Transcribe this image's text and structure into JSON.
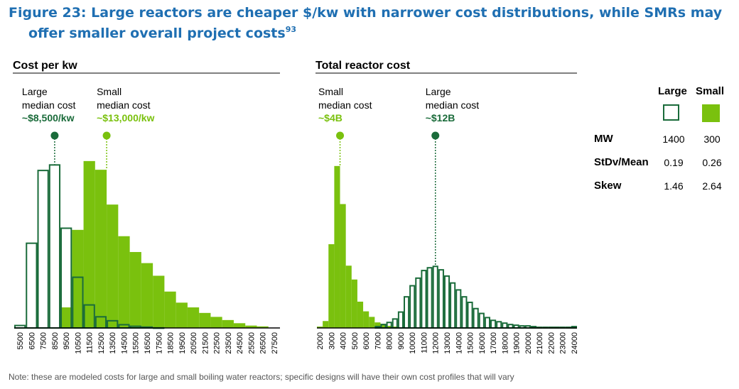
{
  "title_line1": "Figure 23: Large reactors are cheaper $/kw with narrower cost distributions, while SMRs may",
  "title_line2": "offer smaller overall project costs",
  "title_footnote": "93",
  "note": "Note: these are modeled costs for large and small boiling water reactors; specific designs will have their own cost profiles that will vary",
  "colors": {
    "large": "#1a6b3a",
    "small": "#7ac10e"
  },
  "stats": {
    "headers": [
      "Large",
      "Small"
    ],
    "rows": [
      {
        "label": "MW",
        "large": "1400",
        "small": "300"
      },
      {
        "label": "StDv/Mean",
        "large": "0.19",
        "small": "0.26"
      },
      {
        "label": "Skew",
        "large": "1.46",
        "small": "2.64"
      }
    ]
  },
  "chart_data": [
    {
      "type": "bar",
      "title": "Cost per kw",
      "bin_width": 1000,
      "tick_labels": [
        "5500",
        "6500",
        "7500",
        "8500",
        "9500",
        "10500",
        "11500",
        "12500",
        "13500",
        "14500",
        "15500",
        "16500",
        "17500",
        "18500",
        "19500",
        "20500",
        "21500",
        "22500",
        "23500",
        "24500",
        "25500",
        "26500",
        "27500"
      ],
      "xlim": [
        5000,
        28000
      ],
      "ylim": [
        0,
        210
      ],
      "series": [
        {
          "name": "Large",
          "style": "outline",
          "x": [
            5500,
            6500,
            7500,
            8500,
            9500,
            10500,
            11500,
            12500,
            13500,
            14500,
            15500,
            16500,
            17500
          ],
          "values": [
            4,
            108,
            200,
            207,
            127,
            65,
            30,
            15,
            10,
            5,
            3,
            2,
            1
          ]
        },
        {
          "name": "Small",
          "style": "filled",
          "x": [
            9500,
            10500,
            11500,
            12500,
            13500,
            14500,
            15500,
            16500,
            17500,
            18500,
            19500,
            20500,
            21500,
            22500,
            23500,
            24500,
            25500,
            26500
          ],
          "values": [
            26,
            124,
            211,
            200,
            156,
            116,
            96,
            82,
            66,
            46,
            32,
            26,
            19,
            14,
            10,
            6,
            3,
            2
          ]
        }
      ],
      "annotations": [
        {
          "line1": "Large",
          "line2": "median cost",
          "value": "~$8,500/kw",
          "x": 8500,
          "series": "Large"
        },
        {
          "line1": "Small",
          "line2": "median cost",
          "value": "~$13,000/kw",
          "x": 13000,
          "series": "Small"
        }
      ]
    },
    {
      "type": "bar",
      "title": "Total reactor cost",
      "bin_width": 500,
      "tick_labels": [
        "2000",
        "3000",
        "4000",
        "5000",
        "6000",
        "7000",
        "8000",
        "9000",
        "10000",
        "11000",
        "12000",
        "13000",
        "14000",
        "15000",
        "16000",
        "17000",
        "18000",
        "19000",
        "20000",
        "21000",
        "22000",
        "23000",
        "24000"
      ],
      "xlim": [
        1750,
        24250
      ],
      "ylim": [
        0,
        240
      ],
      "series": [
        {
          "name": "Small",
          "style": "filled",
          "x": [
            2000,
            2500,
            3000,
            3500,
            4000,
            4500,
            5000,
            5500,
            6000,
            6500,
            7000,
            7500,
            8000,
            8500
          ],
          "values": [
            2,
            10,
            121,
            234,
            179,
            90,
            70,
            38,
            24,
            16,
            8,
            6,
            3,
            2
          ]
        },
        {
          "name": "Large",
          "style": "outline",
          "x": [
            7000,
            7500,
            8000,
            8500,
            9000,
            9500,
            10000,
            10500,
            11000,
            11500,
            12000,
            12500,
            13000,
            13500,
            14000,
            14500,
            15000,
            15500,
            16000,
            16500,
            17000,
            17500,
            18000,
            18500,
            19000,
            19500,
            20000,
            20500,
            21000,
            21500,
            22000,
            22500,
            23000,
            23500,
            24000
          ],
          "values": [
            3,
            6,
            9,
            14,
            24,
            46,
            62,
            73,
            84,
            88,
            90,
            85,
            76,
            66,
            56,
            46,
            38,
            29,
            22,
            16,
            12,
            10,
            8,
            6,
            5,
            4,
            4,
            3,
            2,
            2,
            2,
            2,
            2,
            2,
            3
          ]
        }
      ],
      "annotations": [
        {
          "line1": "Small",
          "line2": "median cost",
          "value": "~$4B",
          "x": 3750,
          "series": "Small"
        },
        {
          "line1": "Large",
          "line2": "median cost",
          "value": "~$12B",
          "x": 12000,
          "series": "Large"
        }
      ]
    }
  ]
}
